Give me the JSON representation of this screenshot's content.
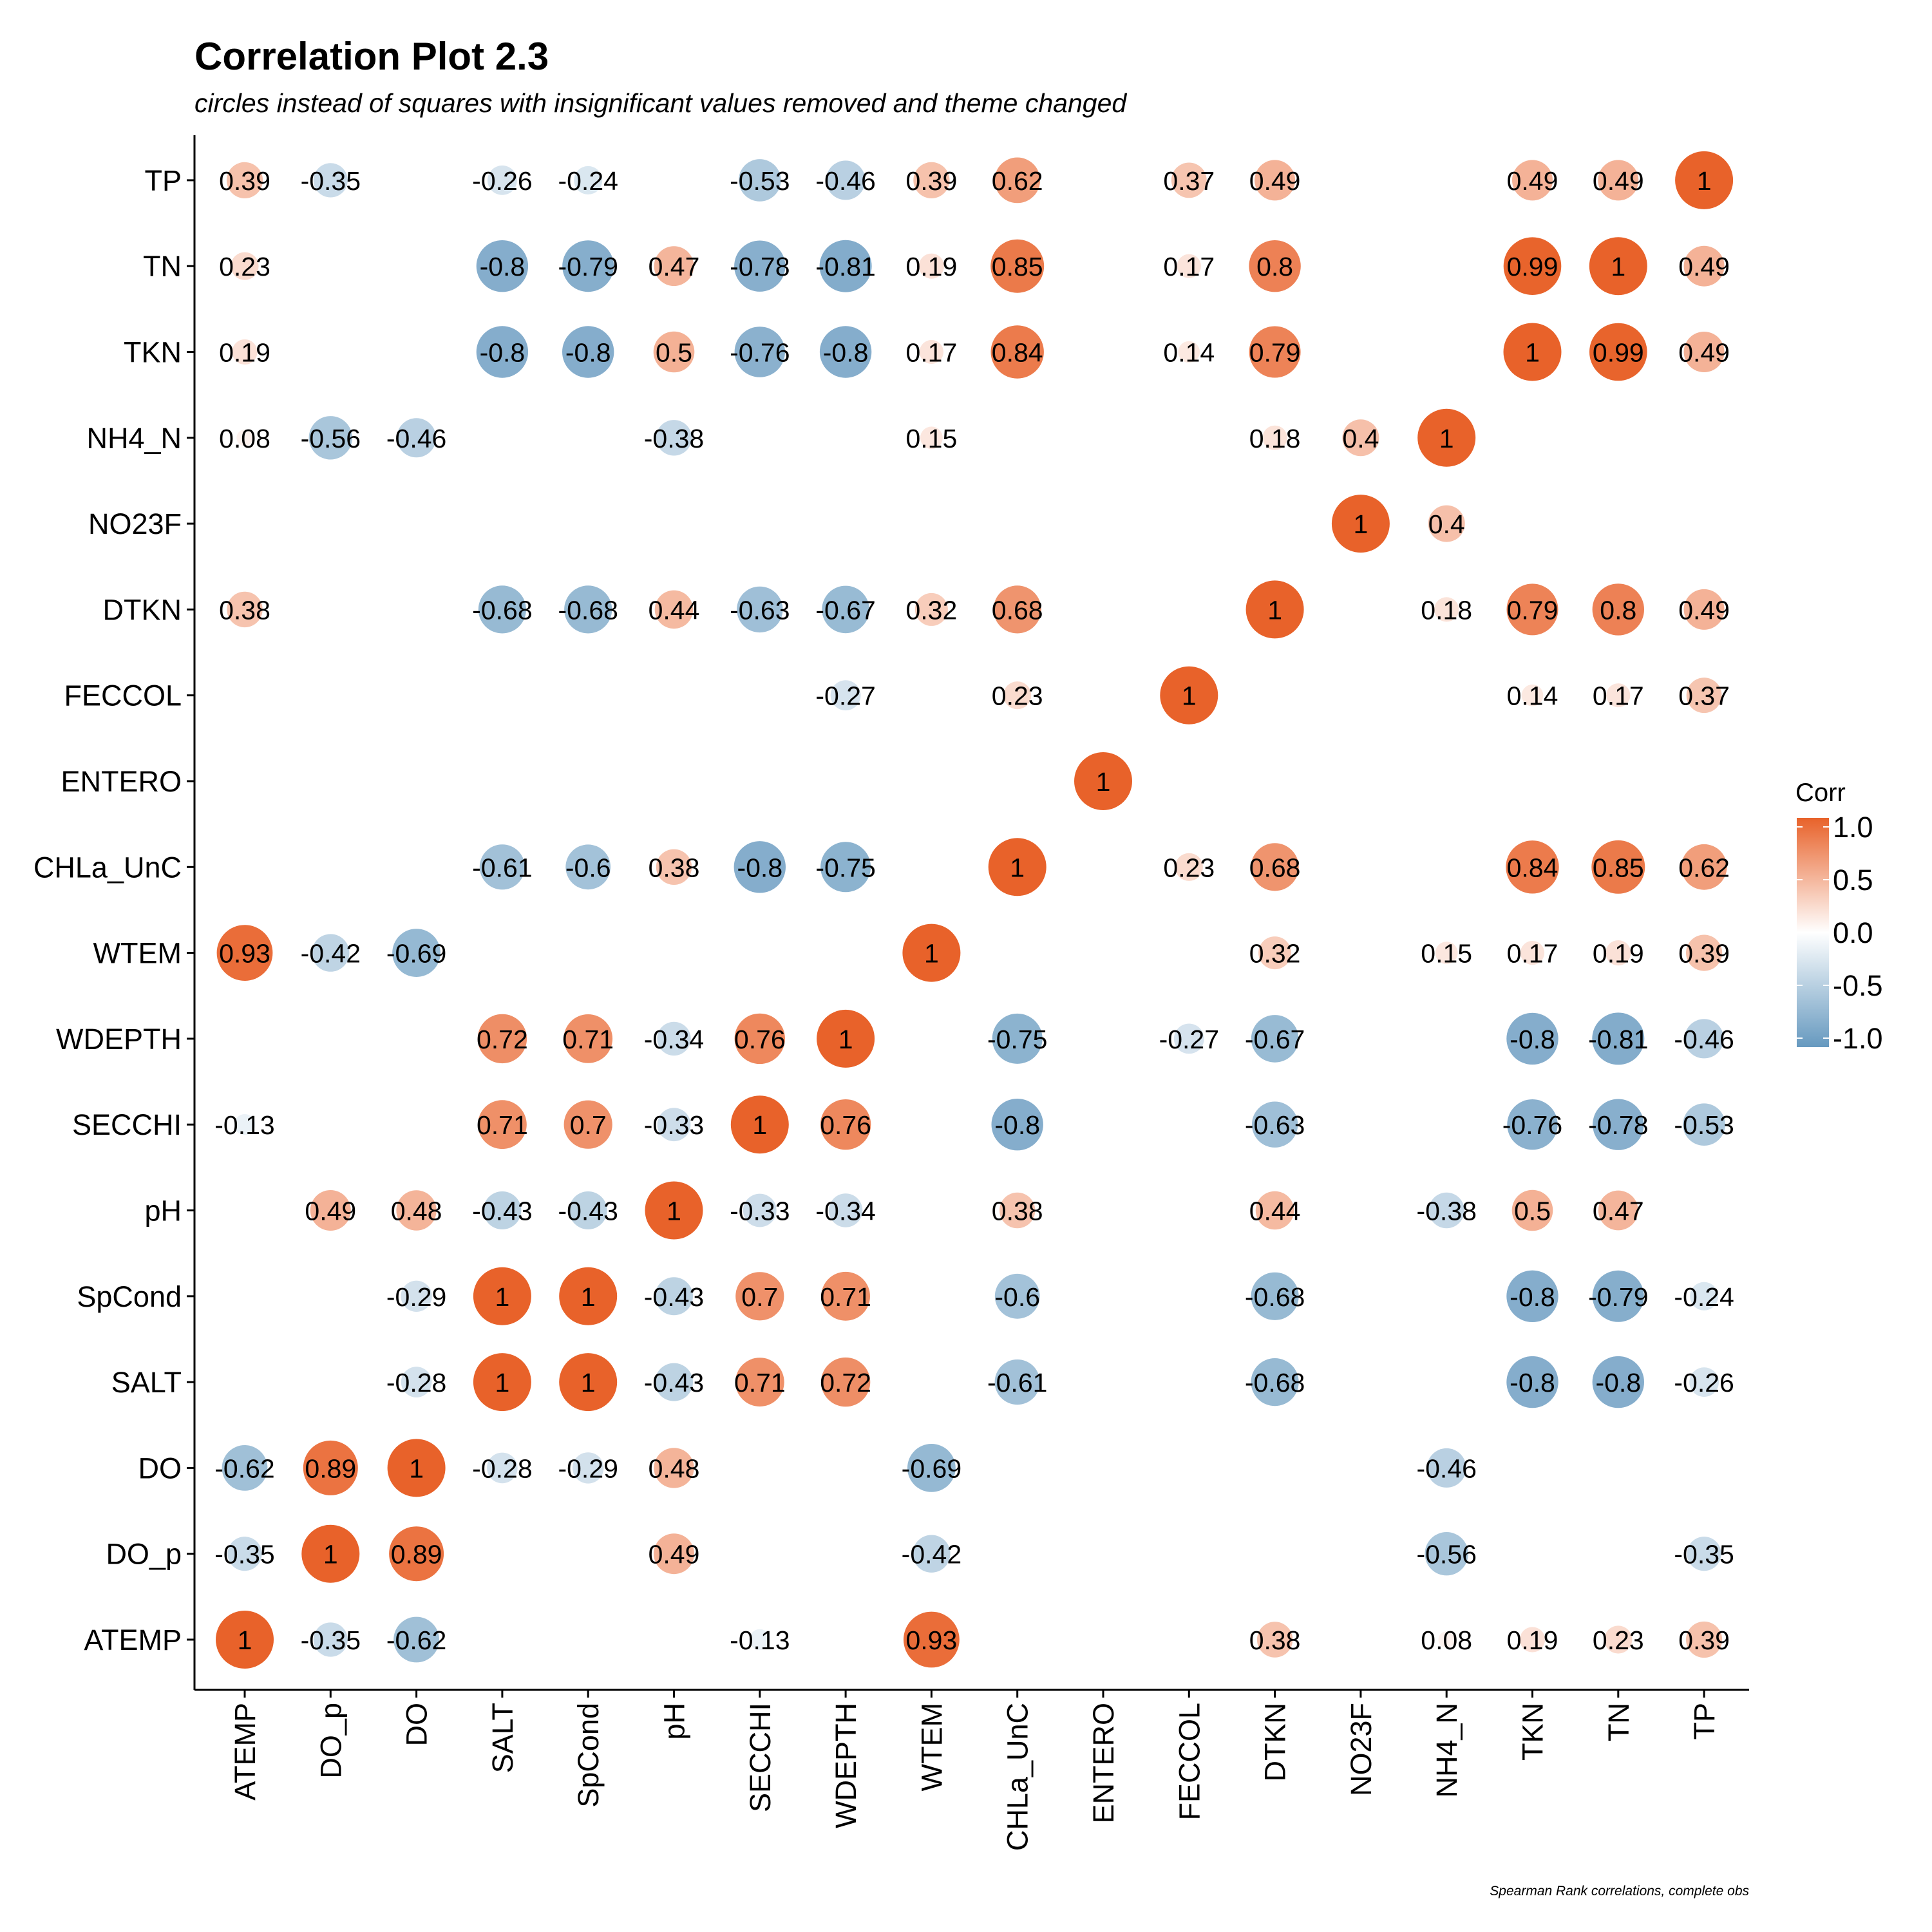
{
  "title": "Correlation Plot 2.3",
  "subtitle": "circles instead of squares with insignificant values removed and theme changed",
  "caption": "Spearman Rank correlations, complete obs",
  "colors": {
    "low": "#6699bf",
    "mid": "#ffffff",
    "high": "#e8622a"
  },
  "chart_data": {
    "type": "heatmap",
    "shape": "circle",
    "variables": [
      "ATEMP",
      "DO_p",
      "DO",
      "SALT",
      "SpCond",
      "pH",
      "SECCHI",
      "WDEPTH",
      "WTEM",
      "CHLa_UnC",
      "ENTERO",
      "FECCOL",
      "DTKN",
      "NO23F",
      "NH4_N",
      "TKN",
      "TN",
      "TP"
    ],
    "cells": [
      [
        "TP",
        "ATEMP",
        0.39
      ],
      [
        "TP",
        "DO_p",
        -0.35
      ],
      [
        "TP",
        "SALT",
        -0.26
      ],
      [
        "TP",
        "SpCond",
        -0.24
      ],
      [
        "TP",
        "SECCHI",
        -0.53
      ],
      [
        "TP",
        "WDEPTH",
        -0.46
      ],
      [
        "TP",
        "WTEM",
        0.39
      ],
      [
        "TP",
        "CHLa_UnC",
        0.62
      ],
      [
        "TP",
        "FECCOL",
        0.37
      ],
      [
        "TP",
        "DTKN",
        0.49
      ],
      [
        "TP",
        "TKN",
        0.49
      ],
      [
        "TP",
        "TN",
        0.49
      ],
      [
        "TP",
        "TP",
        1
      ],
      [
        "TN",
        "ATEMP",
        0.23
      ],
      [
        "TN",
        "SALT",
        -0.8
      ],
      [
        "TN",
        "SpCond",
        -0.79
      ],
      [
        "TN",
        "pH",
        0.47
      ],
      [
        "TN",
        "SECCHI",
        -0.78
      ],
      [
        "TN",
        "WDEPTH",
        -0.81
      ],
      [
        "TN",
        "WTEM",
        0.19
      ],
      [
        "TN",
        "CHLa_UnC",
        0.85
      ],
      [
        "TN",
        "FECCOL",
        0.17
      ],
      [
        "TN",
        "DTKN",
        0.8
      ],
      [
        "TN",
        "TKN",
        0.99
      ],
      [
        "TN",
        "TN",
        1
      ],
      [
        "TN",
        "TP",
        0.49
      ],
      [
        "TKN",
        "ATEMP",
        0.19
      ],
      [
        "TKN",
        "SALT",
        -0.8
      ],
      [
        "TKN",
        "SpCond",
        -0.8
      ],
      [
        "TKN",
        "pH",
        0.5
      ],
      [
        "TKN",
        "SECCHI",
        -0.76
      ],
      [
        "TKN",
        "WDEPTH",
        -0.8
      ],
      [
        "TKN",
        "WTEM",
        0.17
      ],
      [
        "TKN",
        "CHLa_UnC",
        0.84
      ],
      [
        "TKN",
        "FECCOL",
        0.14
      ],
      [
        "TKN",
        "DTKN",
        0.79
      ],
      [
        "TKN",
        "TKN",
        1
      ],
      [
        "TKN",
        "TN",
        0.99
      ],
      [
        "TKN",
        "TP",
        0.49
      ],
      [
        "NH4_N",
        "ATEMP",
        0.08
      ],
      [
        "NH4_N",
        "DO_p",
        -0.56
      ],
      [
        "NH4_N",
        "DO",
        -0.46
      ],
      [
        "NH4_N",
        "pH",
        -0.38
      ],
      [
        "NH4_N",
        "WTEM",
        0.15
      ],
      [
        "NH4_N",
        "DTKN",
        0.18
      ],
      [
        "NH4_N",
        "NO23F",
        0.4
      ],
      [
        "NH4_N",
        "NH4_N",
        1
      ],
      [
        "NO23F",
        "NO23F",
        1
      ],
      [
        "NO23F",
        "NH4_N",
        0.4
      ],
      [
        "DTKN",
        "ATEMP",
        0.38
      ],
      [
        "DTKN",
        "SALT",
        -0.68
      ],
      [
        "DTKN",
        "SpCond",
        -0.68
      ],
      [
        "DTKN",
        "pH",
        0.44
      ],
      [
        "DTKN",
        "SECCHI",
        -0.63
      ],
      [
        "DTKN",
        "WDEPTH",
        -0.67
      ],
      [
        "DTKN",
        "WTEM",
        0.32
      ],
      [
        "DTKN",
        "CHLa_UnC",
        0.68
      ],
      [
        "DTKN",
        "DTKN",
        1
      ],
      [
        "DTKN",
        "NH4_N",
        0.18
      ],
      [
        "DTKN",
        "TKN",
        0.79
      ],
      [
        "DTKN",
        "TN",
        0.8
      ],
      [
        "DTKN",
        "TP",
        0.49
      ],
      [
        "FECCOL",
        "WDEPTH",
        -0.27
      ],
      [
        "FECCOL",
        "CHLa_UnC",
        0.23
      ],
      [
        "FECCOL",
        "FECCOL",
        1
      ],
      [
        "FECCOL",
        "TKN",
        0.14
      ],
      [
        "FECCOL",
        "TN",
        0.17
      ],
      [
        "FECCOL",
        "TP",
        0.37
      ],
      [
        "ENTERO",
        "ENTERO",
        1
      ],
      [
        "CHLa_UnC",
        "SALT",
        -0.61
      ],
      [
        "CHLa_UnC",
        "SpCond",
        -0.6
      ],
      [
        "CHLa_UnC",
        "pH",
        0.38
      ],
      [
        "CHLa_UnC",
        "SECCHI",
        -0.8
      ],
      [
        "CHLa_UnC",
        "WDEPTH",
        -0.75
      ],
      [
        "CHLa_UnC",
        "CHLa_UnC",
        1
      ],
      [
        "CHLa_UnC",
        "FECCOL",
        0.23
      ],
      [
        "CHLa_UnC",
        "DTKN",
        0.68
      ],
      [
        "CHLa_UnC",
        "TKN",
        0.84
      ],
      [
        "CHLa_UnC",
        "TN",
        0.85
      ],
      [
        "CHLa_UnC",
        "TP",
        0.62
      ],
      [
        "WTEM",
        "ATEMP",
        0.93
      ],
      [
        "WTEM",
        "DO_p",
        -0.42
      ],
      [
        "WTEM",
        "DO",
        -0.69
      ],
      [
        "WTEM",
        "WTEM",
        1
      ],
      [
        "WTEM",
        "DTKN",
        0.32
      ],
      [
        "WTEM",
        "NH4_N",
        0.15
      ],
      [
        "WTEM",
        "TKN",
        0.17
      ],
      [
        "WTEM",
        "TN",
        0.19
      ],
      [
        "WTEM",
        "TP",
        0.39
      ],
      [
        "WDEPTH",
        "SALT",
        0.72
      ],
      [
        "WDEPTH",
        "SpCond",
        0.71
      ],
      [
        "WDEPTH",
        "pH",
        -0.34
      ],
      [
        "WDEPTH",
        "SECCHI",
        0.76
      ],
      [
        "WDEPTH",
        "WDEPTH",
        1
      ],
      [
        "WDEPTH",
        "CHLa_UnC",
        -0.75
      ],
      [
        "WDEPTH",
        "FECCOL",
        -0.27
      ],
      [
        "WDEPTH",
        "DTKN",
        -0.67
      ],
      [
        "WDEPTH",
        "TKN",
        -0.8
      ],
      [
        "WDEPTH",
        "TN",
        -0.81
      ],
      [
        "WDEPTH",
        "TP",
        -0.46
      ],
      [
        "SECCHI",
        "ATEMP",
        -0.13
      ],
      [
        "SECCHI",
        "SALT",
        0.71
      ],
      [
        "SECCHI",
        "SpCond",
        0.7
      ],
      [
        "SECCHI",
        "pH",
        -0.33
      ],
      [
        "SECCHI",
        "SECCHI",
        1
      ],
      [
        "SECCHI",
        "WDEPTH",
        0.76
      ],
      [
        "SECCHI",
        "CHLa_UnC",
        -0.8
      ],
      [
        "SECCHI",
        "DTKN",
        -0.63
      ],
      [
        "SECCHI",
        "TKN",
        -0.76
      ],
      [
        "SECCHI",
        "TN",
        -0.78
      ],
      [
        "SECCHI",
        "TP",
        -0.53
      ],
      [
        "pH",
        "DO_p",
        0.49
      ],
      [
        "pH",
        "DO",
        0.48
      ],
      [
        "pH",
        "SALT",
        -0.43
      ],
      [
        "pH",
        "SpCond",
        -0.43
      ],
      [
        "pH",
        "pH",
        1
      ],
      [
        "pH",
        "SECCHI",
        -0.33
      ],
      [
        "pH",
        "WDEPTH",
        -0.34
      ],
      [
        "pH",
        "CHLa_UnC",
        0.38
      ],
      [
        "pH",
        "DTKN",
        0.44
      ],
      [
        "pH",
        "NH4_N",
        -0.38
      ],
      [
        "pH",
        "TKN",
        0.5
      ],
      [
        "pH",
        "TN",
        0.47
      ],
      [
        "SpCond",
        "DO",
        -0.29
      ],
      [
        "SpCond",
        "SALT",
        1
      ],
      [
        "SpCond",
        "SpCond",
        1
      ],
      [
        "SpCond",
        "pH",
        -0.43
      ],
      [
        "SpCond",
        "SECCHI",
        0.7
      ],
      [
        "SpCond",
        "WDEPTH",
        0.71
      ],
      [
        "SpCond",
        "CHLa_UnC",
        -0.6
      ],
      [
        "SpCond",
        "DTKN",
        -0.68
      ],
      [
        "SpCond",
        "TKN",
        -0.8
      ],
      [
        "SpCond",
        "TN",
        -0.79
      ],
      [
        "SpCond",
        "TP",
        -0.24
      ],
      [
        "SALT",
        "DO",
        -0.28
      ],
      [
        "SALT",
        "SALT",
        1
      ],
      [
        "SALT",
        "SpCond",
        1
      ],
      [
        "SALT",
        "pH",
        -0.43
      ],
      [
        "SALT",
        "SECCHI",
        0.71
      ],
      [
        "SALT",
        "WDEPTH",
        0.72
      ],
      [
        "SALT",
        "CHLa_UnC",
        -0.61
      ],
      [
        "SALT",
        "DTKN",
        -0.68
      ],
      [
        "SALT",
        "TKN",
        -0.8
      ],
      [
        "SALT",
        "TN",
        -0.8
      ],
      [
        "SALT",
        "TP",
        -0.26
      ],
      [
        "DO",
        "ATEMP",
        -0.62
      ],
      [
        "DO",
        "DO_p",
        0.89
      ],
      [
        "DO",
        "DO",
        1
      ],
      [
        "DO",
        "SALT",
        -0.28
      ],
      [
        "DO",
        "SpCond",
        -0.29
      ],
      [
        "DO",
        "pH",
        0.48
      ],
      [
        "DO",
        "WTEM",
        -0.69
      ],
      [
        "DO",
        "NH4_N",
        -0.46
      ],
      [
        "DO_p",
        "ATEMP",
        -0.35
      ],
      [
        "DO_p",
        "DO_p",
        1
      ],
      [
        "DO_p",
        "DO",
        0.89
      ],
      [
        "DO_p",
        "pH",
        0.49
      ],
      [
        "DO_p",
        "WTEM",
        -0.42
      ],
      [
        "DO_p",
        "NH4_N",
        -0.56
      ],
      [
        "DO_p",
        "TP",
        -0.35
      ],
      [
        "ATEMP",
        "ATEMP",
        1
      ],
      [
        "ATEMP",
        "DO_p",
        -0.35
      ],
      [
        "ATEMP",
        "DO",
        -0.62
      ],
      [
        "ATEMP",
        "SECCHI",
        -0.13
      ],
      [
        "ATEMP",
        "WTEM",
        0.93
      ],
      [
        "ATEMP",
        "DTKN",
        0.38
      ],
      [
        "ATEMP",
        "NH4_N",
        0.08
      ],
      [
        "ATEMP",
        "TKN",
        0.19
      ],
      [
        "ATEMP",
        "TN",
        0.23
      ],
      [
        "ATEMP",
        "TP",
        0.39
      ]
    ],
    "legend": {
      "title": "Corr",
      "position": "right",
      "range": [
        -1,
        1
      ],
      "ticks": [
        "1.0",
        "0.5",
        "0.0",
        "-0.5",
        "-1.0"
      ]
    }
  }
}
